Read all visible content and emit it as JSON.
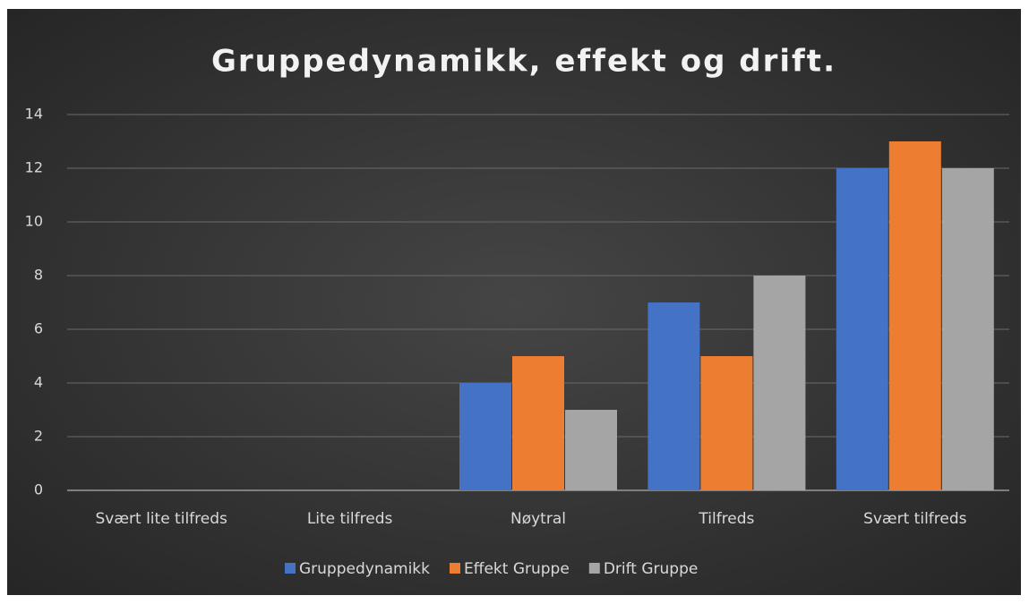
{
  "chart_data": {
    "type": "bar",
    "title": "Gruppedynamikk, effekt og drift.",
    "categories": [
      "Svært lite tilfreds",
      "Lite tilfreds",
      "Nøytral",
      "Tilfreds",
      "Svært tilfreds"
    ],
    "series": [
      {
        "name": "Gruppedynamikk",
        "color": "#4472c4",
        "values": [
          0,
          0,
          4,
          7,
          12
        ]
      },
      {
        "name": "Effekt Gruppe",
        "color": "#ed7d31",
        "values": [
          0,
          0,
          5,
          5,
          13
        ]
      },
      {
        "name": "Drift Gruppe",
        "color": "#a5a5a5",
        "values": [
          0,
          0,
          3,
          8,
          12
        ]
      }
    ],
    "ylim": [
      0,
      14
    ],
    "yticks": [
      0,
      2,
      4,
      6,
      8,
      10,
      12,
      14
    ],
    "grid": true,
    "legend": "bottom"
  }
}
